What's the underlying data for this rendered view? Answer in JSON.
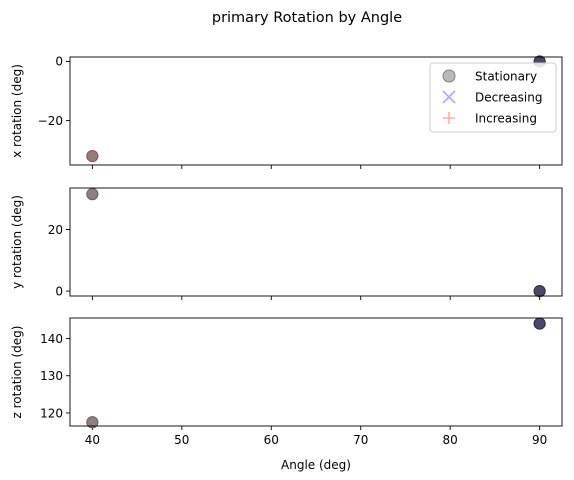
{
  "chart_data": {
    "type": "scatter",
    "title": "primary Rotation by Angle",
    "xlabel": "Angle (deg)",
    "xlim": [
      37.5,
      92.5
    ],
    "x_ticks": [
      40,
      50,
      60,
      70,
      80,
      90
    ],
    "legend": {
      "placement": "top-right",
      "entries": [
        {
          "label": "Stationary",
          "marker": "circle",
          "color": "#808080"
        },
        {
          "label": "Decreasing",
          "marker": "x",
          "color": "#aaaaff"
        },
        {
          "label": "Increasing",
          "marker": "plus",
          "color": "#ffaaaa"
        }
      ]
    },
    "panels": [
      {
        "name": "x",
        "ylabel": "x rotation (deg)",
        "ylim": [
          -35,
          1.5
        ],
        "y_ticks": [
          0,
          -20
        ],
        "points": [
          {
            "x": 40,
            "y": -32,
            "color": "#8a7272",
            "edge": "#a04848"
          },
          {
            "x": 90,
            "y": 0,
            "color": "#3a3a5c",
            "edge": "#2a2a44"
          }
        ]
      },
      {
        "name": "y",
        "ylabel": "y rotation (deg)",
        "ylim": [
          -1.6,
          33.5
        ],
        "y_ticks": [
          0,
          20
        ],
        "points": [
          {
            "x": 40,
            "y": 31.5,
            "color": "#857575",
            "edge": "#6a5c5c"
          },
          {
            "x": 90,
            "y": 0,
            "color": "#3a3a5c",
            "edge": "#2a2a44"
          }
        ]
      },
      {
        "name": "z",
        "ylabel": "z rotation (deg)",
        "ylim": [
          116.5,
          145.5
        ],
        "y_ticks": [
          120,
          130,
          140
        ],
        "points": [
          {
            "x": 40,
            "y": 117.5,
            "color": "#857575",
            "edge": "#6a5c5c"
          },
          {
            "x": 90,
            "y": 144,
            "color": "#3a3a5c",
            "edge": "#2a2a44"
          }
        ]
      }
    ]
  }
}
